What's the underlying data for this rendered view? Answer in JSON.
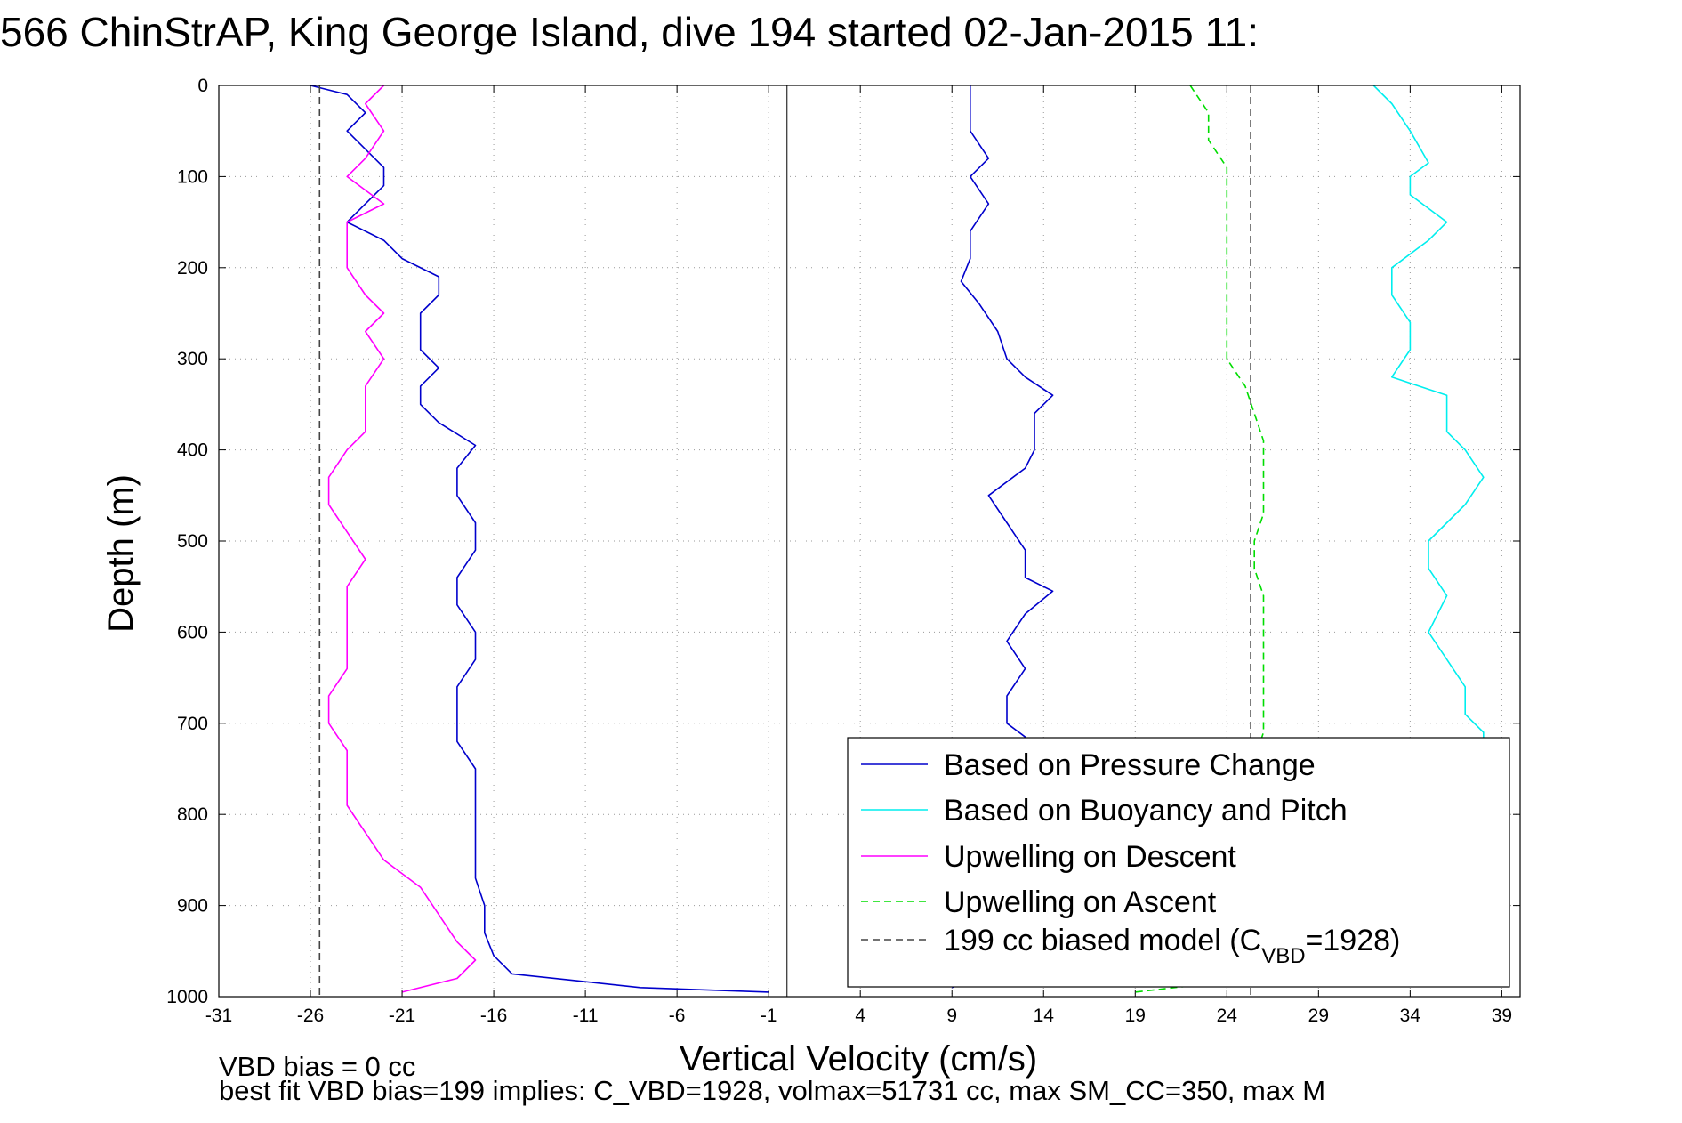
{
  "chart_data": {
    "type": "line",
    "title": "566 ChinStrAP, King George Island, dive 194 started 02-Jan-2015 11:",
    "xlabel": "Vertical Velocity (cm/s)",
    "ylabel": "Depth (m)",
    "xlim": [
      -31,
      40
    ],
    "ylim": [
      1000,
      0
    ],
    "y_reversed": true,
    "xticks": [
      -31,
      -26,
      -21,
      -16,
      -11,
      -6,
      -1,
      4,
      9,
      14,
      19,
      24,
      29,
      34,
      39
    ],
    "yticks": [
      0,
      100,
      200,
      300,
      400,
      500,
      600,
      700,
      800,
      900,
      1000
    ],
    "grid": true,
    "legend_position": "bottom-right",
    "vertical_line_x": 0,
    "series": [
      {
        "name": "Based on Pressure Change",
        "color": "#0000cc",
        "style": "solid",
        "segments": [
          {
            "depth": [
              0,
              10,
              30,
              50,
              70,
              90,
              110,
              130,
              150,
              170,
              190,
              210,
              230,
              250,
              270,
              290,
              310,
              330,
              350,
              370,
              395,
              420,
              450,
              480,
              510,
              540,
              570,
              600,
              630,
              660,
              690,
              720,
              750,
              780,
              810,
              840,
              870,
              900,
              930,
              955,
              975,
              990,
              995
            ],
            "value": [
              -26,
              -24,
              -23,
              -24,
              -23,
              -22,
              -22,
              -23,
              -24,
              -22,
              -21,
              -19,
              -19,
              -20,
              -20,
              -20,
              -19,
              -20,
              -20,
              -19,
              -17,
              -18,
              -18,
              -17,
              -17,
              -18,
              -18,
              -17,
              -17,
              -18,
              -18,
              -18,
              -17,
              -17,
              -17,
              -17,
              -17,
              -16.5,
              -16.5,
              -16,
              -15,
              -8,
              -1
            ]
          },
          {
            "depth": [
              0,
              20,
              50,
              80,
              100,
              130,
              160,
              190,
              215,
              240,
              270,
              300,
              320,
              340,
              360,
              380,
              400,
              420,
              450,
              480,
              510,
              540,
              555,
              580,
              610,
              640,
              670,
              700,
              715,
              735,
              760,
              800,
              850,
              900,
              950,
              990
            ],
            "value": [
              10,
              10,
              10,
              11,
              10,
              11,
              10,
              10,
              9.5,
              10.5,
              11.5,
              12,
              13,
              14.5,
              13.5,
              13.5,
              13.5,
              13,
              11,
              12,
              13,
              13,
              14.5,
              13,
              12,
              13,
              12,
              12,
              13,
              13.5,
              13.5,
              13.8,
              14,
              14.2,
              14.5,
              9
            ]
          }
        ]
      },
      {
        "name": "Based on Buoyancy and Pitch",
        "color": "#00eeee",
        "style": "solid",
        "segments": [
          {
            "depth": [
              0,
              20,
              50,
              85,
              100,
              120,
              150,
              170,
              200,
              230,
              260,
              290,
              320,
              340,
              360,
              380,
              400,
              430,
              460,
              500,
              530,
              560,
              600,
              630,
              660,
              690,
              710,
              720
            ],
            "value": [
              32,
              33,
              34,
              35,
              34,
              34,
              36,
              35,
              33,
              33,
              34,
              34,
              33,
              36,
              36,
              36,
              37,
              38,
              37,
              35,
              35,
              36,
              35,
              36,
              37,
              37,
              38,
              38
            ]
          }
        ]
      },
      {
        "name": "Upwelling on Descent",
        "color": "#ff00ff",
        "style": "solid",
        "segments": [
          {
            "depth": [
              0,
              20,
              50,
              80,
              100,
              130,
              150,
              170,
              200,
              230,
              250,
              270,
              300,
              330,
              350,
              380,
              400,
              430,
              460,
              490,
              520,
              550,
              580,
              610,
              640,
              670,
              700,
              730,
              760,
              790,
              820,
              850,
              880,
              910,
              940,
              960,
              980,
              995
            ],
            "value": [
              -22,
              -23,
              -22,
              -23,
              -24,
              -22,
              -24,
              -24,
              -24,
              -23,
              -22,
              -23,
              -22,
              -23,
              -23,
              -23,
              -24,
              -25,
              -25,
              -24,
              -23,
              -24,
              -24,
              -24,
              -24,
              -25,
              -25,
              -24,
              -24,
              -24,
              -23,
              -22,
              -20,
              -19,
              -18,
              -17,
              -18,
              -21
            ]
          }
        ]
      },
      {
        "name": "Upwelling on Ascent",
        "color": "#00dd00",
        "style": "dashed",
        "segments": [
          {
            "depth": [
              0,
              30,
              60,
              90,
              120,
              150,
              180,
              210,
              240,
              270,
              300,
              330,
              360,
              390,
              410,
              440,
              470,
              500,
              530,
              560,
              590,
              620,
              650,
              680,
              710,
              740,
              770,
              800,
              830,
              860,
              890,
              920,
              950,
              980,
              995
            ],
            "value": [
              22,
              23,
              23,
              24,
              24,
              24,
              24,
              24,
              24,
              24,
              24,
              25,
              25.5,
              26,
              26,
              26,
              26,
              25.5,
              25.5,
              26,
              26,
              26,
              26,
              26,
              26,
              25.5,
              25.5,
              25.5,
              25.5,
              25.5,
              25.5,
              25.5,
              25.5,
              25.5,
              19
            ]
          }
        ]
      },
      {
        "name": "199 cc biased model (C_VBD=1928)",
        "color": "#444444",
        "style": "dashed",
        "segments": [
          {
            "depth": [
              0,
              1000
            ],
            "value": [
              -25.5,
              -25.5
            ]
          },
          {
            "depth": [
              0,
              1000
            ],
            "value": [
              25.3,
              25.3
            ]
          }
        ]
      }
    ],
    "legend": [
      {
        "label": "Based on Pressure Change",
        "color": "#0000cc",
        "style": "solid"
      },
      {
        "label": "Based on Buoyancy and Pitch",
        "color": "#00eeee",
        "style": "solid"
      },
      {
        "label": "Upwelling on Descent",
        "color": "#ff00ff",
        "style": "solid"
      },
      {
        "label": "Upwelling on Ascent",
        "color": "#00dd00",
        "style": "dashed"
      },
      {
        "label": "199 cc biased model (C",
        "sub": "VBD",
        "tail": "=1928)",
        "color": "#444444",
        "style": "dashed"
      }
    ]
  },
  "footer": {
    "line1": "VBD bias = 0 cc",
    "line2": "best fit VBD bias=199 implies: C_VBD=1928, volmax=51731 cc, max SM_CC=350, max M"
  }
}
